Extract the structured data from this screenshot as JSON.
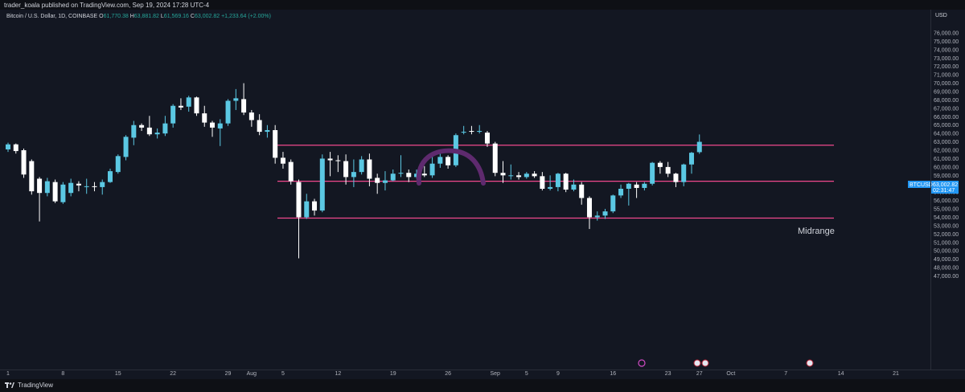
{
  "header": {
    "publisher": "trader_koala published on TradingView.com, Sep 19, 2024 17:28 UTC-4"
  },
  "legend": {
    "symbol": "Bitcoin / U.S. Dollar, 1D, COINBASE",
    "o_label": "O",
    "o_value": "61,770.38",
    "h_label": "H",
    "h_value": "63,881.82",
    "l_label": "L",
    "l_value": "61,569.16",
    "c_label": "C",
    "c_value": "63,002.82",
    "change": "+1,233.64 (+2.00%)"
  },
  "price_axis": {
    "currency": "USD"
  },
  "price_tag": {
    "symbol": "BTCUSD",
    "price": "63,002.82",
    "countdown": "02:31:47"
  },
  "annotations": {
    "midrange_label": "Midrange"
  },
  "footer": {
    "brand": "TradingView"
  },
  "colors": {
    "background": "#131722",
    "up_candle": "#5bc8e3",
    "down_candle": "#ffffff",
    "level_line": "#f0488d",
    "arc": "#5e2a6e",
    "price_tag": "#2196f3"
  },
  "chart_data": {
    "type": "candlestick",
    "symbol": "BTCUSD",
    "timeframe": "1D",
    "y_ticks": [
      47000,
      48000,
      49000,
      50000,
      51000,
      52000,
      53000,
      54000,
      55000,
      56000,
      57000,
      58000,
      59000,
      60000,
      61000,
      62000,
      63000,
      64000,
      65000,
      66000,
      67000,
      68000,
      69000,
      70000,
      71000,
      72000,
      73000,
      74000,
      75000,
      76000
    ],
    "y_tick_labels": [
      "47,000.00",
      "48,000.00",
      "49,000.00",
      "50,000.00",
      "51,000.00",
      "52,000.00",
      "53,000.00",
      "54,000.00",
      "55,000.00",
      "56,000.00",
      "57,000.00",
      "58,000.00",
      "59,000.00",
      "60,000.00",
      "61,000.00",
      "62,000.00",
      "63,000.00",
      "64,000.00",
      "65,000.00",
      "66,000.00",
      "67,000.00",
      "68,000.00",
      "69,000.00",
      "70,000.00",
      "71,000.00",
      "72,000.00",
      "73,000.00",
      "74,000.00",
      "75,000.00",
      "76,000.00"
    ],
    "x_ticks": [
      {
        "index": 0,
        "label": "1"
      },
      {
        "index": 7,
        "label": "8"
      },
      {
        "index": 14,
        "label": "15"
      },
      {
        "index": 21,
        "label": "22"
      },
      {
        "index": 28,
        "label": "29"
      },
      {
        "index": 31,
        "label": "Aug"
      },
      {
        "index": 35,
        "label": "5"
      },
      {
        "index": 42,
        "label": "12"
      },
      {
        "index": 49,
        "label": "19"
      },
      {
        "index": 56,
        "label": "26"
      },
      {
        "index": 62,
        "label": "Sep"
      },
      {
        "index": 66,
        "label": "5"
      },
      {
        "index": 70,
        "label": "9"
      },
      {
        "index": 77,
        "label": "16"
      },
      {
        "index": 84,
        "label": "23"
      },
      {
        "index": 88,
        "label": "27"
      },
      {
        "index": 92,
        "label": "Oct"
      },
      {
        "index": 99,
        "label": "7"
      },
      {
        "index": 106,
        "label": "14"
      },
      {
        "index": 113,
        "label": "21"
      }
    ],
    "horizontal_levels": [
      62600,
      58300,
      53900
    ],
    "candles": [
      {
        "o": 62100,
        "h": 62900,
        "c": 62700,
        "l": 61800
      },
      {
        "o": 62700,
        "h": 62800,
        "c": 61900,
        "l": 61600
      },
      {
        "o": 62000,
        "h": 62200,
        "c": 59100,
        "l": 58700
      },
      {
        "o": 60700,
        "h": 60900,
        "c": 57100,
        "l": 56700
      },
      {
        "o": 58600,
        "h": 58800,
        "c": 56900,
        "l": 53500
      },
      {
        "o": 56900,
        "h": 58700,
        "c": 58300,
        "l": 56500
      },
      {
        "o": 58200,
        "h": 58500,
        "c": 55900,
        "l": 55700
      },
      {
        "o": 55800,
        "h": 58200,
        "c": 57900,
        "l": 55600
      },
      {
        "o": 56900,
        "h": 58600,
        "c": 58100,
        "l": 56500
      },
      {
        "o": 58000,
        "h": 58300,
        "c": 57800,
        "l": 57100
      },
      {
        "o": 57700,
        "h": 58600,
        "c": 57700,
        "l": 56800
      },
      {
        "o": 57700,
        "h": 58200,
        "c": 57600,
        "l": 57100
      },
      {
        "o": 57600,
        "h": 58500,
        "c": 58200,
        "l": 56700
      },
      {
        "o": 58200,
        "h": 59800,
        "c": 59500,
        "l": 58100
      },
      {
        "o": 59400,
        "h": 61500,
        "c": 61300,
        "l": 59200
      },
      {
        "o": 61200,
        "h": 63800,
        "c": 63600,
        "l": 60800
      },
      {
        "o": 63500,
        "h": 65500,
        "c": 65000,
        "l": 62600
      },
      {
        "o": 65000,
        "h": 65200,
        "c": 64700,
        "l": 64300
      },
      {
        "o": 64700,
        "h": 66100,
        "c": 63900,
        "l": 63700
      },
      {
        "o": 63900,
        "h": 64600,
        "c": 64100,
        "l": 63400
      },
      {
        "o": 64000,
        "h": 66100,
        "c": 65200,
        "l": 63700
      },
      {
        "o": 65200,
        "h": 67500,
        "c": 67300,
        "l": 64700
      },
      {
        "o": 67300,
        "h": 68200,
        "c": 67100,
        "l": 66800
      },
      {
        "o": 67200,
        "h": 68500,
        "c": 68300,
        "l": 66600
      },
      {
        "o": 68300,
        "h": 68400,
        "c": 66400,
        "l": 66100
      },
      {
        "o": 66400,
        "h": 67300,
        "c": 65300,
        "l": 64800
      },
      {
        "o": 65300,
        "h": 65500,
        "c": 64700,
        "l": 63600
      },
      {
        "o": 64600,
        "h": 65700,
        "c": 65200,
        "l": 62500
      },
      {
        "o": 65200,
        "h": 68100,
        "c": 67900,
        "l": 64900
      },
      {
        "o": 67900,
        "h": 69300,
        "c": 68200,
        "l": 66800
      },
      {
        "o": 68100,
        "h": 70000,
        "c": 66500,
        "l": 66200
      },
      {
        "o": 66500,
        "h": 66800,
        "c": 65600,
        "l": 64800
      },
      {
        "o": 65600,
        "h": 66300,
        "c": 64200,
        "l": 63800
      },
      {
        "o": 64200,
        "h": 65000,
        "c": 64400,
        "l": 63500
      },
      {
        "o": 64400,
        "h": 65000,
        "c": 61100,
        "l": 60400
      },
      {
        "o": 61100,
        "h": 61800,
        "c": 60400,
        "l": 59800
      },
      {
        "o": 60600,
        "h": 60900,
        "c": 58300,
        "l": 57900
      },
      {
        "o": 58200,
        "h": 58500,
        "c": 54000,
        "l": 49100
      },
      {
        "o": 54000,
        "h": 56800,
        "c": 55900,
        "l": 53800
      },
      {
        "o": 55900,
        "h": 56200,
        "c": 54800,
        "l": 54200
      },
      {
        "o": 54800,
        "h": 61500,
        "c": 61000,
        "l": 54600
      },
      {
        "o": 61000,
        "h": 61800,
        "c": 60800,
        "l": 58900
      },
      {
        "o": 60800,
        "h": 61400,
        "c": 60700,
        "l": 59400
      },
      {
        "o": 60700,
        "h": 61500,
        "c": 58800,
        "l": 57900
      },
      {
        "o": 58800,
        "h": 60900,
        "c": 59400,
        "l": 57600
      },
      {
        "o": 59400,
        "h": 61300,
        "c": 60900,
        "l": 59100
      },
      {
        "o": 60900,
        "h": 61600,
        "c": 58600,
        "l": 57700
      },
      {
        "o": 58700,
        "h": 59200,
        "c": 58100,
        "l": 56800
      },
      {
        "o": 58100,
        "h": 59500,
        "c": 58400,
        "l": 57200
      },
      {
        "o": 58400,
        "h": 59700,
        "c": 59200,
        "l": 58300
      },
      {
        "o": 59200,
        "h": 61400,
        "c": 59300,
        "l": 58800
      },
      {
        "o": 59300,
        "h": 59700,
        "c": 58800,
        "l": 58200
      },
      {
        "o": 58800,
        "h": 59700,
        "c": 59200,
        "l": 58600
      },
      {
        "o": 59200,
        "h": 60100,
        "c": 59000,
        "l": 58800
      },
      {
        "o": 59000,
        "h": 61200,
        "c": 60400,
        "l": 58700
      },
      {
        "o": 60400,
        "h": 61900,
        "c": 61200,
        "l": 59900
      },
      {
        "o": 61200,
        "h": 61400,
        "c": 60200,
        "l": 59800
      },
      {
        "o": 60200,
        "h": 64000,
        "c": 63800,
        "l": 60000
      },
      {
        "o": 64100,
        "h": 64900,
        "c": 64200,
        "l": 63900
      },
      {
        "o": 64300,
        "h": 64900,
        "c": 64200,
        "l": 63900
      },
      {
        "o": 64200,
        "h": 65000,
        "c": 64300,
        "l": 64000
      },
      {
        "o": 64100,
        "h": 64300,
        "c": 62800,
        "l": 62400
      },
      {
        "o": 62800,
        "h": 63000,
        "c": 59300,
        "l": 58900
      },
      {
        "o": 59300,
        "h": 60700,
        "c": 59000,
        "l": 58100
      },
      {
        "o": 59000,
        "h": 60300,
        "c": 59000,
        "l": 58500
      },
      {
        "o": 59000,
        "h": 59400,
        "c": 58800,
        "l": 58500
      },
      {
        "o": 58800,
        "h": 59400,
        "c": 59200,
        "l": 58600
      },
      {
        "o": 59200,
        "h": 59500,
        "c": 58900,
        "l": 58700
      },
      {
        "o": 58900,
        "h": 59400,
        "c": 57400,
        "l": 57200
      },
      {
        "o": 57400,
        "h": 59000,
        "c": 57600,
        "l": 57200
      },
      {
        "o": 57600,
        "h": 59300,
        "c": 59200,
        "l": 57100
      },
      {
        "o": 59200,
        "h": 59300,
        "c": 57300,
        "l": 57000
      },
      {
        "o": 57300,
        "h": 58500,
        "c": 57900,
        "l": 57100
      },
      {
        "o": 57900,
        "h": 58200,
        "c": 56300,
        "l": 55500
      },
      {
        "o": 56300,
        "h": 56500,
        "c": 54000,
        "l": 52600
      },
      {
        "o": 54000,
        "h": 54700,
        "c": 54200,
        "l": 53600
      },
      {
        "o": 54200,
        "h": 55000,
        "c": 54700,
        "l": 53800
      },
      {
        "o": 54700,
        "h": 56700,
        "c": 56600,
        "l": 54500
      },
      {
        "o": 56600,
        "h": 57900,
        "c": 57400,
        "l": 56300
      },
      {
        "o": 57400,
        "h": 58100,
        "c": 58000,
        "l": 55400
      },
      {
        "o": 57900,
        "h": 58200,
        "c": 57500,
        "l": 56300
      },
      {
        "o": 57500,
        "h": 58200,
        "c": 58000,
        "l": 57200
      },
      {
        "o": 58000,
        "h": 60600,
        "c": 60500,
        "l": 57800
      },
      {
        "o": 60500,
        "h": 60700,
        "c": 60000,
        "l": 59200
      },
      {
        "o": 60000,
        "h": 60600,
        "c": 59200,
        "l": 58800
      },
      {
        "o": 59200,
        "h": 59300,
        "c": 58200,
        "l": 57600
      },
      {
        "o": 58200,
        "h": 60400,
        "c": 60300,
        "l": 57700
      },
      {
        "o": 60300,
        "h": 61800,
        "c": 61700,
        "l": 59200
      },
      {
        "o": 61770,
        "h": 63882,
        "c": 63003,
        "l": 61569
      }
    ]
  }
}
